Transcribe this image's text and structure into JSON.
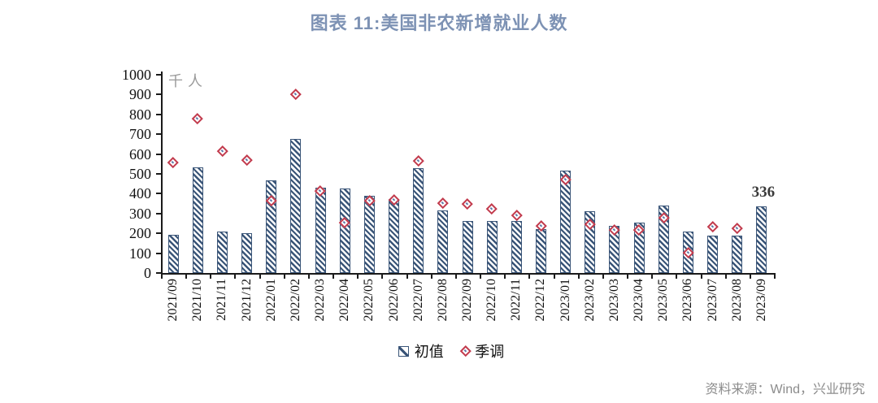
{
  "title": "图表 11:美国非农新增就业人数",
  "unit_label": "千人",
  "source": "资料来源：Wind，兴业研究",
  "legend": {
    "items": [
      {
        "label": "初值",
        "swatch": "hatched-bar"
      },
      {
        "label": "季调",
        "swatch": "red-diamond"
      }
    ]
  },
  "colors": {
    "title": "#7D92B4",
    "bar": "#3A5578",
    "marker": "#C23B4D",
    "marker_center": "#5B79A8",
    "axis": "#1A1A1A",
    "annotation": "#3A3A3A",
    "unit": "#9A9A9A",
    "source": "#8C8C8C"
  },
  "chart_data": {
    "type": "bar",
    "title": "图表 11:美国非农新增就业人数",
    "ylabel": "千人",
    "ylim": [
      0,
      1000
    ],
    "ytick_step": 100,
    "grid": false,
    "legend_position": "bottom",
    "categories": [
      "2021/09",
      "2021/10",
      "2021/11",
      "2021/12",
      "2022/01",
      "2022/02",
      "2022/03",
      "2022/04",
      "2022/05",
      "2022/06",
      "2022/07",
      "2022/08",
      "2022/09",
      "2022/10",
      "2022/11",
      "2022/12",
      "2023/01",
      "2023/02",
      "2023/03",
      "2023/04",
      "2023/05",
      "2023/06",
      "2023/07",
      "2023/08",
      "2023/09"
    ],
    "series": [
      {
        "name": "初值",
        "type": "bar",
        "values": [
          194,
          531,
          210,
          199,
          467,
          678,
          431,
          428,
          390,
          372,
          528,
          315,
          263,
          261,
          263,
          223,
          517,
          311,
          236,
          253,
          339,
          209,
          187,
          187,
          336
        ]
      },
      {
        "name": "季调",
        "type": "scatter",
        "marker": "diamond",
        "values": [
          557,
          779,
          614,
          570,
          364,
          904,
          414,
          254,
          364,
          370,
          568,
          352,
          350,
          324,
          290,
          239,
          472,
          248,
          217,
          217,
          281,
          105,
          236,
          227,
          null
        ]
      }
    ],
    "annotation": {
      "text": "336",
      "category": "2023/09",
      "category_index": 24
    }
  }
}
